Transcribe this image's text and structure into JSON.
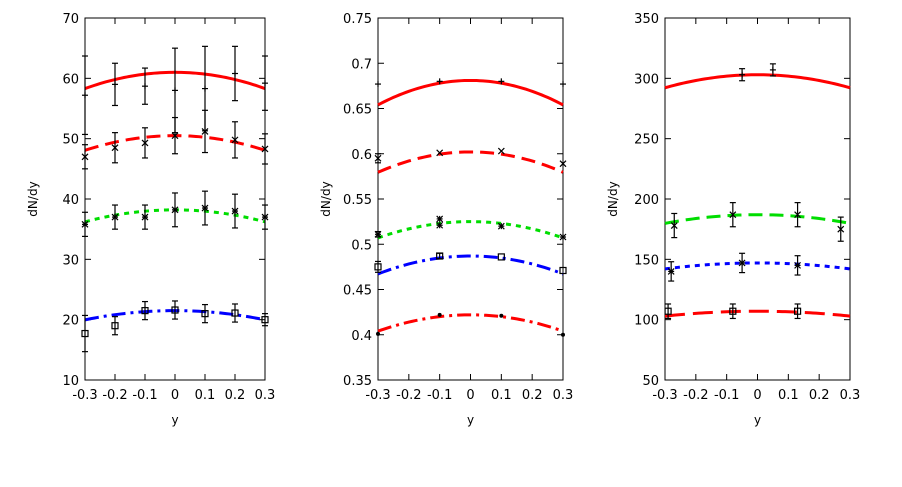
{
  "caption": "",
  "chart_data": [
    {
      "type": "scatter",
      "xlabel": "y",
      "ylabel": "dN/dy",
      "xlim": [
        -0.3,
        0.3
      ],
      "ylim": [
        10,
        70
      ],
      "xticks": [
        "-0.3",
        "-0.2",
        "-0.1",
        "0",
        "0.1",
        "0.2",
        "0.3"
      ],
      "yticks": [
        "10",
        "20",
        "30",
        "40",
        "50",
        "60",
        "70"
      ],
      "series": [
        {
          "color": "#ff0000",
          "line_style": "solid",
          "marker": "plus",
          "curve": {
            "peak": 61,
            "curvature": 30
          },
          "points": [
            {
              "x": -0.3,
              "y": 57.2,
              "err": 6.5
            },
            {
              "x": -0.2,
              "y": 59.0,
              "err": 3.5
            },
            {
              "x": -0.1,
              "y": 58.7,
              "err": 3.0
            },
            {
              "x": 0.0,
              "y": 58.0,
              "err": 7.0
            },
            {
              "x": 0.1,
              "y": 58.3,
              "err": 7.0
            },
            {
              "x": 0.2,
              "y": 60.8,
              "err": 4.5
            },
            {
              "x": 0.3,
              "y": 59.2,
              "err": 4.5
            }
          ]
        },
        {
          "color": "#ff0000",
          "line_style": "dashed",
          "marker": "cross",
          "curve": {
            "peak": 50.5,
            "curvature": 27
          },
          "points": [
            {
              "x": -0.3,
              "y": 47.0,
              "err": 2.0
            },
            {
              "x": -0.2,
              "y": 48.5,
              "err": 2.5
            },
            {
              "x": -0.1,
              "y": 49.3,
              "err": 2.5
            },
            {
              "x": 0.0,
              "y": 50.5,
              "err": 3.0
            },
            {
              "x": 0.1,
              "y": 51.2,
              "err": 3.5
            },
            {
              "x": 0.2,
              "y": 49.8,
              "err": 3.0
            },
            {
              "x": 0.3,
              "y": 48.3,
              "err": 2.5
            }
          ]
        },
        {
          "color": "#00dd00",
          "line_style": "dotted",
          "marker": "star",
          "curve": {
            "peak": 38.2,
            "curvature": 22
          },
          "points": [
            {
              "x": -0.3,
              "y": 35.8,
              "err": 2.0
            },
            {
              "x": -0.2,
              "y": 37.0,
              "err": 2.0
            },
            {
              "x": -0.1,
              "y": 37.0,
              "err": 2.0
            },
            {
              "x": 0.0,
              "y": 38.2,
              "err": 2.8
            },
            {
              "x": 0.1,
              "y": 38.5,
              "err": 2.8
            },
            {
              "x": 0.2,
              "y": 38.0,
              "err": 2.8
            },
            {
              "x": 0.3,
              "y": 37.0,
              "err": 2.0
            }
          ]
        },
        {
          "color": "#0000ff",
          "line_style": "dashdot",
          "marker": "square",
          "curve": {
            "peak": 21.5,
            "curvature": 17
          },
          "points": [
            {
              "x": -0.3,
              "y": 17.7,
              "err": 3.0
            },
            {
              "x": -0.2,
              "y": 19.0,
              "err": 1.5
            },
            {
              "x": -0.1,
              "y": 21.5,
              "err": 1.5
            },
            {
              "x": 0.0,
              "y": 21.6,
              "err": 1.5
            },
            {
              "x": 0.1,
              "y": 21.0,
              "err": 1.5
            },
            {
              "x": 0.2,
              "y": 21.1,
              "err": 1.5
            },
            {
              "x": 0.3,
              "y": 20.0,
              "err": 1.0
            }
          ]
        }
      ]
    },
    {
      "type": "scatter",
      "xlabel": "y",
      "ylabel": "dN/dy",
      "xlim": [
        -0.3,
        0.3
      ],
      "ylim": [
        0.35,
        0.75
      ],
      "xticks": [
        "-0.3",
        "-0.2",
        "-0.1",
        "0",
        "0.1",
        "0.2",
        "0.3"
      ],
      "yticks": [
        "0.35",
        "0.4",
        "0.45",
        "0.5",
        "0.55",
        "0.6",
        "0.65",
        "0.7",
        "0.75"
      ],
      "series": [
        {
          "color": "#ff0000",
          "line_style": "solid",
          "marker": "plus",
          "curve": {
            "peak": 0.681,
            "curvature": 0.3
          },
          "points": [
            {
              "x": -0.3,
              "y": 0.677,
              "err": 0
            },
            {
              "x": -0.1,
              "y": 0.68,
              "err": 0
            },
            {
              "x": 0.1,
              "y": 0.68,
              "err": 0
            },
            {
              "x": 0.3,
              "y": 0.677,
              "err": 0
            }
          ]
        },
        {
          "color": "#ff0000",
          "line_style": "dashed",
          "marker": "cross",
          "curve": {
            "peak": 0.602,
            "curvature": 0.25
          },
          "points": [
            {
              "x": -0.3,
              "y": 0.595,
              "err": 0.005
            },
            {
              "x": -0.1,
              "y": 0.601,
              "err": 0
            },
            {
              "x": 0.1,
              "y": 0.603,
              "err": 0
            },
            {
              "x": 0.3,
              "y": 0.589,
              "err": 0
            }
          ]
        },
        {
          "color": "#00dd00",
          "line_style": "dotted",
          "marker": "star",
          "curve": {
            "peak": 0.525,
            "curvature": 0.2
          },
          "points": [
            {
              "x": -0.3,
              "y": 0.511,
              "err": 0.003
            },
            {
              "x": -0.1,
              "y": 0.528,
              "err": 0
            },
            {
              "x": -0.1,
              "y": 0.521,
              "err": 0
            },
            {
              "x": 0.1,
              "y": 0.52,
              "err": 0
            },
            {
              "x": 0.3,
              "y": 0.508,
              "err": 0
            }
          ]
        },
        {
          "color": "#0000ff",
          "line_style": "dashdot",
          "marker": "square",
          "curve": {
            "peak": 0.487,
            "curvature": 0.22
          },
          "points": [
            {
              "x": -0.3,
              "y": 0.475,
              "err": 0.006
            },
            {
              "x": -0.1,
              "y": 0.487,
              "err": 0.003
            },
            {
              "x": 0.1,
              "y": 0.486,
              "err": 0
            },
            {
              "x": 0.3,
              "y": 0.471,
              "err": 0
            }
          ]
        },
        {
          "color": "#ff0000",
          "line_style": "dashdot",
          "marker": "dot",
          "curve": {
            "peak": 0.422,
            "curvature": 0.2
          },
          "points": [
            {
              "x": -0.3,
              "y": 0.401,
              "err": 0
            },
            {
              "x": -0.1,
              "y": 0.422,
              "err": 0
            },
            {
              "x": 0.1,
              "y": 0.421,
              "err": 0
            },
            {
              "x": 0.3,
              "y": 0.4,
              "err": 0
            }
          ]
        }
      ]
    },
    {
      "type": "scatter",
      "xlabel": "y",
      "ylabel": "dN/dy",
      "xlim": [
        -0.3,
        0.3
      ],
      "ylim": [
        50,
        350
      ],
      "xticks": [
        "-0.3",
        "-0.2",
        "-0.1",
        "0",
        "0.1",
        "0.2",
        "0.3"
      ],
      "yticks": [
        "50",
        "100",
        "150",
        "200",
        "250",
        "300",
        "350"
      ],
      "series": [
        {
          "color": "#ff0000",
          "line_style": "solid",
          "marker": "plus",
          "curve": {
            "peak": 303,
            "curvature": 120
          },
          "points": [
            {
              "x": -0.05,
              "y": 303,
              "err": 5
            },
            {
              "x": 0.05,
              "y": 307,
              "err": 5
            }
          ]
        },
        {
          "color": "#00dd00",
          "line_style": "dashed",
          "marker": "cross",
          "curve": {
            "peak": 187,
            "curvature": 80
          },
          "points": [
            {
              "x": -0.27,
              "y": 178,
              "err": 10
            },
            {
              "x": -0.08,
              "y": 187,
              "err": 10
            },
            {
              "x": 0.13,
              "y": 187,
              "err": 10
            },
            {
              "x": 0.27,
              "y": 175,
              "err": 10
            }
          ]
        },
        {
          "color": "#0000ff",
          "line_style": "dotted",
          "marker": "star",
          "curve": {
            "peak": 147,
            "curvature": 55
          },
          "points": [
            {
              "x": -0.28,
              "y": 140,
              "err": 8
            },
            {
              "x": -0.05,
              "y": 147,
              "err": 8
            },
            {
              "x": 0.13,
              "y": 145,
              "err": 8
            }
          ]
        },
        {
          "color": "#ff0000",
          "line_style": "longdash",
          "marker": "square",
          "curve": {
            "peak": 107,
            "curvature": 45
          },
          "points": [
            {
              "x": -0.29,
              "y": 107,
              "err": 6
            },
            {
              "x": -0.08,
              "y": 107,
              "err": 6
            },
            {
              "x": 0.13,
              "y": 107,
              "err": 6
            }
          ]
        }
      ]
    }
  ]
}
